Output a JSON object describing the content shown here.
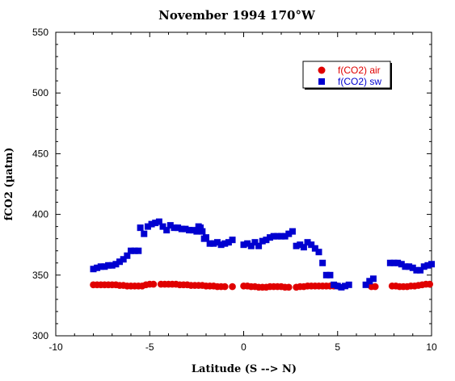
{
  "chart_data": {
    "type": "scatter",
    "title": "November 1994 170°W",
    "xlabel": "Latitude (S --> N)",
    "ylabel": "fCO2 (µatm)",
    "xlim": [
      -10,
      10
    ],
    "ylim": [
      300,
      550
    ],
    "x_ticks": [
      -10,
      -5,
      0,
      5,
      10
    ],
    "y_ticks": [
      300,
      350,
      400,
      450,
      500,
      550
    ],
    "grid": false,
    "legend_position": "top-right",
    "series": [
      {
        "name": "f(CO2) air",
        "color": "#e00000",
        "marker": "circle",
        "points": [
          [
            -8,
            342
          ],
          [
            -7.8,
            342
          ],
          [
            -7.6,
            342
          ],
          [
            -7.4,
            342
          ],
          [
            -7.2,
            342
          ],
          [
            -7,
            342
          ],
          [
            -6.8,
            342
          ],
          [
            -6.6,
            341.5
          ],
          [
            -6.4,
            341.5
          ],
          [
            -6.2,
            341
          ],
          [
            -6,
            341
          ],
          [
            -5.8,
            341
          ],
          [
            -5.6,
            341
          ],
          [
            -5.4,
            341
          ],
          [
            -5.2,
            342
          ],
          [
            -5,
            342.5
          ],
          [
            -4.8,
            342.5
          ],
          [
            -4.4,
            342.5
          ],
          [
            -4.2,
            342.5
          ],
          [
            -4,
            342.5
          ],
          [
            -3.8,
            342.5
          ],
          [
            -3.6,
            342.5
          ],
          [
            -3.4,
            342
          ],
          [
            -3.2,
            342
          ],
          [
            -3,
            342
          ],
          [
            -2.8,
            341.5
          ],
          [
            -2.6,
            341.5
          ],
          [
            -2.4,
            341.5
          ],
          [
            -2.2,
            341.5
          ],
          [
            -2,
            341
          ],
          [
            -1.8,
            341
          ],
          [
            -1.6,
            341
          ],
          [
            -1.4,
            340.5
          ],
          [
            -1.2,
            340.5
          ],
          [
            -1,
            340.5
          ],
          [
            -0.6,
            340.5
          ],
          [
            0,
            341
          ],
          [
            0.2,
            341
          ],
          [
            0.4,
            340.5
          ],
          [
            0.6,
            340.5
          ],
          [
            0.8,
            340
          ],
          [
            1,
            340
          ],
          [
            1.2,
            340
          ],
          [
            1.4,
            340.5
          ],
          [
            1.6,
            340.5
          ],
          [
            1.8,
            340.5
          ],
          [
            2,
            340.5
          ],
          [
            2.2,
            340
          ],
          [
            2.4,
            340
          ],
          [
            2.8,
            340
          ],
          [
            3,
            340.5
          ],
          [
            3.2,
            340.5
          ],
          [
            3.4,
            341
          ],
          [
            3.6,
            341
          ],
          [
            3.8,
            341
          ],
          [
            4,
            341
          ],
          [
            4.2,
            341
          ],
          [
            4.4,
            341
          ],
          [
            4.6,
            341
          ],
          [
            4.8,
            341
          ],
          [
            5,
            341
          ],
          [
            6.8,
            340.5
          ],
          [
            7,
            340.5
          ],
          [
            7.9,
            341
          ],
          [
            8.1,
            341
          ],
          [
            8.3,
            340.5
          ],
          [
            8.5,
            340.5
          ],
          [
            8.7,
            340.5
          ],
          [
            8.9,
            341
          ],
          [
            9.1,
            341
          ],
          [
            9.3,
            341.5
          ],
          [
            9.5,
            342
          ],
          [
            9.7,
            342.5
          ],
          [
            9.9,
            342.5
          ]
        ]
      },
      {
        "name": "f(CO2) sw",
        "color": "#0000d0",
        "marker": "square",
        "points": [
          [
            -8,
            355
          ],
          [
            -7.8,
            356
          ],
          [
            -7.6,
            357
          ],
          [
            -7.4,
            357
          ],
          [
            -7.2,
            358
          ],
          [
            -7,
            358
          ],
          [
            -6.8,
            359
          ],
          [
            -6.6,
            361
          ],
          [
            -6.4,
            363
          ],
          [
            -6.2,
            366
          ],
          [
            -6,
            370
          ],
          [
            -5.8,
            370
          ],
          [
            -5.6,
            370
          ],
          [
            -5.5,
            389
          ],
          [
            -5.3,
            384
          ],
          [
            -5.1,
            390
          ],
          [
            -4.9,
            392
          ],
          [
            -4.7,
            393
          ],
          [
            -4.5,
            394
          ],
          [
            -4.3,
            390
          ],
          [
            -4.1,
            387
          ],
          [
            -3.9,
            391
          ],
          [
            -3.7,
            389
          ],
          [
            -3.5,
            389
          ],
          [
            -3.3,
            388
          ],
          [
            -3.1,
            388
          ],
          [
            -2.9,
            387
          ],
          [
            -2.7,
            387
          ],
          [
            -2.5,
            386
          ],
          [
            -2.4,
            390
          ],
          [
            -2.3,
            389
          ],
          [
            -2.2,
            386
          ],
          [
            -2.1,
            380
          ],
          [
            -2,
            381
          ],
          [
            -1.8,
            376
          ],
          [
            -1.6,
            376
          ],
          [
            -1.4,
            377
          ],
          [
            -1.2,
            375
          ],
          [
            -1,
            376
          ],
          [
            -0.8,
            377
          ],
          [
            -0.6,
            379
          ],
          [
            0,
            375
          ],
          [
            0.2,
            376
          ],
          [
            0.4,
            374
          ],
          [
            0.6,
            377
          ],
          [
            0.8,
            374
          ],
          [
            1,
            378
          ],
          [
            1.2,
            379
          ],
          [
            1.4,
            381
          ],
          [
            1.6,
            382
          ],
          [
            1.8,
            382
          ],
          [
            2,
            382
          ],
          [
            2.2,
            382
          ],
          [
            2.4,
            384
          ],
          [
            2.6,
            386
          ],
          [
            2.8,
            374
          ],
          [
            3,
            375
          ],
          [
            3.2,
            373
          ],
          [
            3.4,
            377
          ],
          [
            3.6,
            375
          ],
          [
            3.8,
            372
          ],
          [
            4,
            369
          ],
          [
            4.2,
            360
          ],
          [
            4.4,
            350
          ],
          [
            4.6,
            350
          ],
          [
            4.8,
            342
          ],
          [
            5,
            341
          ],
          [
            5.2,
            340
          ],
          [
            5.4,
            341
          ],
          [
            5.6,
            342
          ],
          [
            6.5,
            342
          ],
          [
            6.7,
            345
          ],
          [
            6.9,
            347
          ],
          [
            7.8,
            360
          ],
          [
            8,
            360
          ],
          [
            8.2,
            360
          ],
          [
            8.4,
            359
          ],
          [
            8.6,
            357
          ],
          [
            8.8,
            357
          ],
          [
            9,
            356
          ],
          [
            9.2,
            354
          ],
          [
            9.4,
            354
          ],
          [
            9.6,
            357
          ],
          [
            9.8,
            358
          ],
          [
            10,
            359
          ]
        ]
      }
    ]
  }
}
